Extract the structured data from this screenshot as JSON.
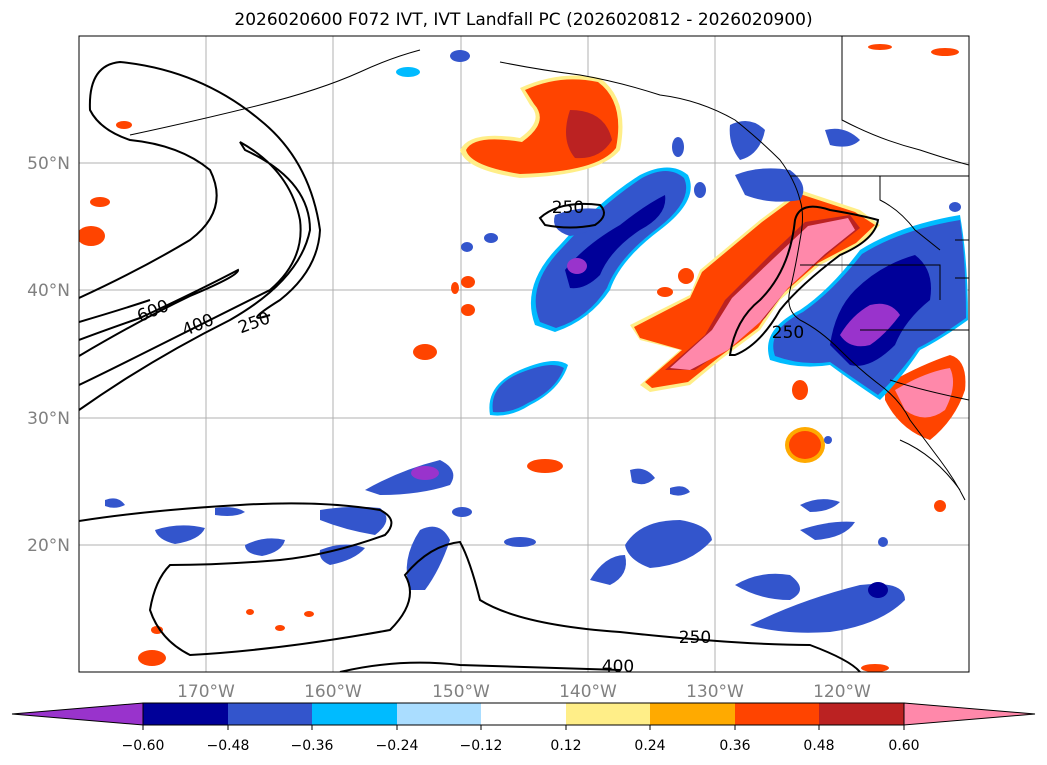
{
  "title": "2026020600 F072 IVT, IVT Landfall PC (2026020812 - 2026020900)",
  "map": {
    "lon_labels": [
      "170°W",
      "160°W",
      "150°W",
      "140°W",
      "130°W",
      "120°W"
    ],
    "lat_labels": [
      "50°N",
      "40°N",
      "30°N",
      "20°N"
    ],
    "contour_labels": [
      "600",
      "400",
      "250",
      "250",
      "250",
      "250",
      "400"
    ]
  },
  "colorbar": {
    "ticks": [
      "−0.60",
      "−0.48",
      "−0.36",
      "−0.24",
      "−0.12",
      "0.12",
      "0.24",
      "0.36",
      "0.48",
      "0.60"
    ],
    "colors": [
      "#9933cc",
      "#000099",
      "#3355cc",
      "#00bbff",
      "#aaddff",
      "#ffffff",
      "#ffee88",
      "#ffaa00",
      "#ff4400",
      "#bb2222",
      "#ff88aa",
      "#ff88aa"
    ]
  },
  "palette": {
    "neg_deep": "#9933cc",
    "neg_navy": "#000099",
    "neg_blue": "#3355cc",
    "neg_cyan": "#00bbff",
    "pos_yellow": "#ffee88",
    "pos_orange": "#ffaa00",
    "pos_red": "#ff4400",
    "pos_dark": "#bb2222",
    "pos_pink": "#ff88aa"
  }
}
